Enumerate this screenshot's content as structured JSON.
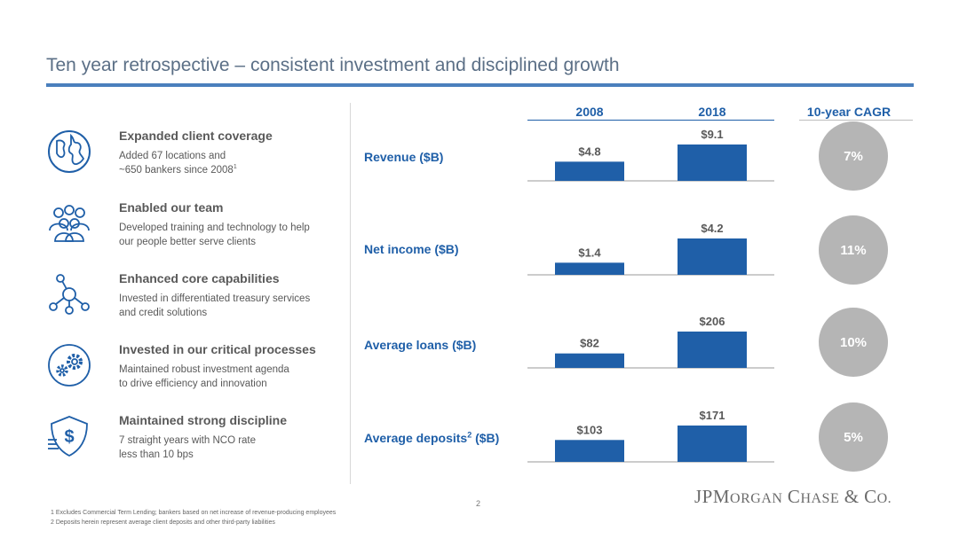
{
  "title": "Ten year retrospective – consistent investment and disciplined growth",
  "colors": {
    "blue": "#1f5fa8",
    "accent_rule": "#4a7fbd",
    "circle_gray": "#b5b5b5"
  },
  "items": [
    {
      "icon": "globe-icon",
      "heading": "Expanded client coverage",
      "desc_line1": "Added 67 locations and",
      "desc_line2": "~650 bankers since 2008",
      "desc_sup": "1"
    },
    {
      "icon": "team-icon",
      "heading": "Enabled our team",
      "desc_line1": "Developed training and technology to help",
      "desc_line2": "our people better serve clients",
      "desc_sup": ""
    },
    {
      "icon": "network-icon",
      "heading": "Enhanced core capabilities",
      "desc_line1": "Invested in differentiated treasury services",
      "desc_line2": "and credit solutions",
      "desc_sup": ""
    },
    {
      "icon": "gears-icon",
      "heading": "Invested in our critical processes",
      "desc_line1": "Maintained robust investment agenda",
      "desc_line2": "to drive efficiency and innovation",
      "desc_sup": ""
    },
    {
      "icon": "shield-dollar-icon",
      "heading": "Maintained strong discipline",
      "desc_line1": "7 straight years with NCO rate",
      "desc_line2": "less than 10 bps",
      "desc_sup": ""
    }
  ],
  "headers": {
    "year1": "2008",
    "year2": "2018",
    "cagr": "10-year CAGR"
  },
  "metrics": [
    {
      "label": "Revenue ($B)",
      "label_main": "Revenue ($B)",
      "label_sup": "",
      "label_tail": "",
      "cagr": "7%"
    },
    {
      "label": "Net income ($B)",
      "label_main": "Net income ($B)",
      "label_sup": "",
      "label_tail": "",
      "cagr": "11%"
    },
    {
      "label": "Average loans ($B)",
      "label_main": "Average loans ($B)",
      "label_sup": "",
      "label_tail": "",
      "cagr": "10%"
    },
    {
      "label": "Average deposits2 ($B)",
      "label_main": "Average deposits",
      "label_sup": "2",
      "label_tail": " ($B)",
      "cagr": "5%"
    }
  ],
  "chart_data": {
    "type": "bar",
    "categories": [
      "2008",
      "2018"
    ],
    "panels": [
      {
        "name": "Revenue ($B)",
        "values": [
          4.8,
          9.1
        ],
        "labels": [
          "$4.8",
          "$9.1"
        ],
        "cagr": "7%"
      },
      {
        "name": "Net income ($B)",
        "values": [
          1.4,
          4.2
        ],
        "labels": [
          "$1.4",
          "$4.2"
        ],
        "cagr": "11%"
      },
      {
        "name": "Average loans ($B)",
        "values": [
          82,
          206
        ],
        "labels": [
          "$82",
          "$206"
        ],
        "cagr": "10%"
      },
      {
        "name": "Average deposits2 ($B)",
        "values": [
          103,
          171
        ],
        "labels": [
          "$103",
          "$171"
        ],
        "cagr": "5%"
      }
    ]
  },
  "page_number": "2",
  "logo": {
    "text": "JPMorgan Chase & Co."
  },
  "footnotes": [
    "1 Excludes Commercial Term Lending; bankers based on net increase of revenue-producing employees",
    "2 Deposits herein represent average client deposits and other third-party liabilities"
  ]
}
